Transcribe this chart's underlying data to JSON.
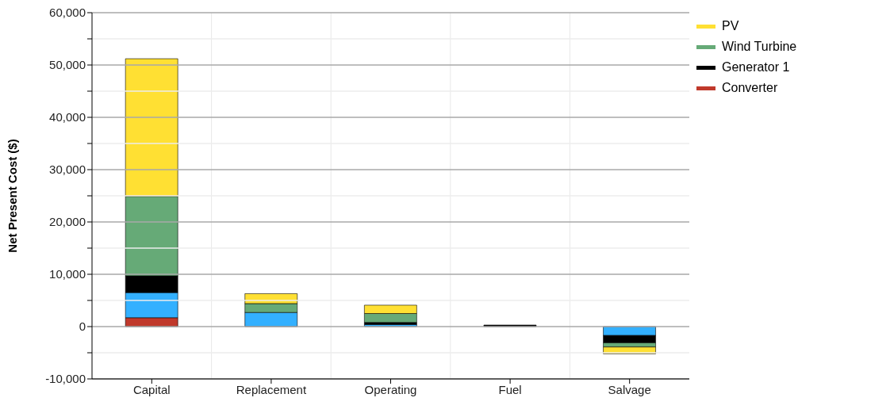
{
  "chart_data": {
    "type": "bar",
    "stacked": true,
    "ylabel": "Net Present Cost ($)",
    "categories": [
      "Capital",
      "Replacement",
      "Operating",
      "Fuel",
      "Salvage"
    ],
    "series": [
      {
        "name": "Converter",
        "color": "#c0392b",
        "values": [
          1700,
          0,
          0,
          0,
          0
        ]
      },
      {
        "color": "#33b0ff",
        "values": [
          4800,
          2700,
          400,
          0,
          -1700
        ]
      },
      {
        "name": "Generator 1",
        "color": "#000000",
        "values": [
          3200,
          0,
          400,
          300,
          -1400
        ]
      },
      {
        "name": "Wind Turbine",
        "color": "#66aa77",
        "values": [
          15200,
          1700,
          1700,
          0,
          -800
        ]
      },
      {
        "name": "PV",
        "color": "#ffe033",
        "values": [
          26300,
          1900,
          1600,
          0,
          -1300
        ]
      }
    ],
    "ylim": [
      -10000,
      60000
    ],
    "yticks": [
      {
        "value": -10000,
        "label": "-10,000"
      },
      {
        "value": -5000,
        "label": null
      },
      {
        "value": 0,
        "label": "0"
      },
      {
        "value": 5000,
        "label": null
      },
      {
        "value": 10000,
        "label": "10,000"
      },
      {
        "value": 15000,
        "label": null
      },
      {
        "value": 20000,
        "label": "20,000"
      },
      {
        "value": 25000,
        "label": null
      },
      {
        "value": 30000,
        "label": "30,000"
      },
      {
        "value": 35000,
        "label": null
      },
      {
        "value": 40000,
        "label": "40,000"
      },
      {
        "value": 45000,
        "label": null
      },
      {
        "value": 50000,
        "label": "50,000"
      },
      {
        "value": 55000,
        "label": null
      },
      {
        "value": 60000,
        "label": "60,000"
      }
    ],
    "grid": true,
    "legend": "top right"
  }
}
